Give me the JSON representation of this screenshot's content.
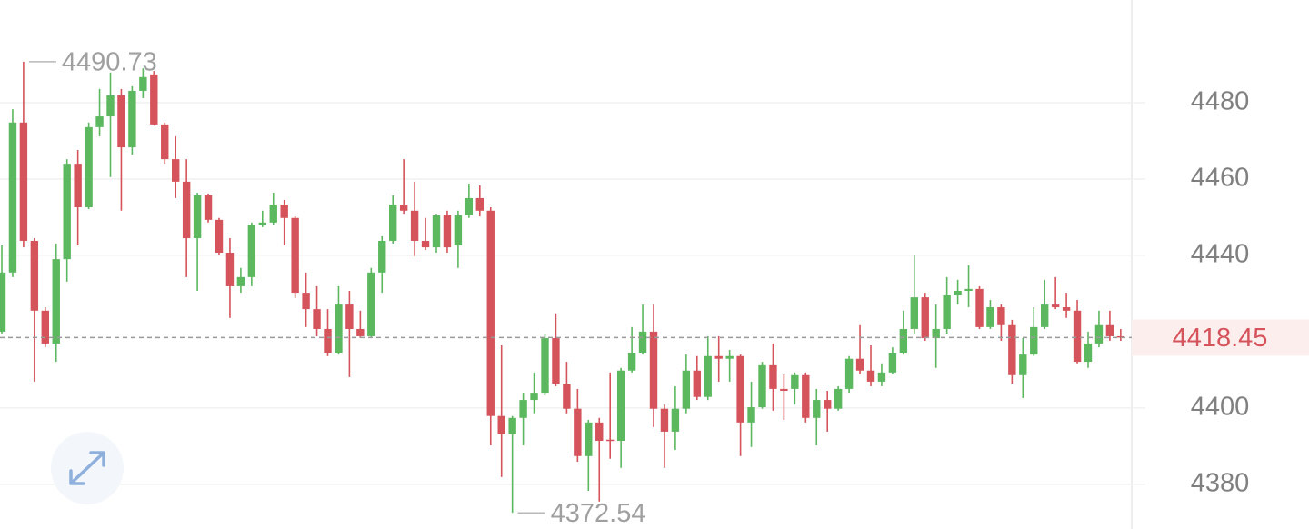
{
  "chart_data": {
    "type": "candlestick",
    "open": [
      4420.0,
      4435.5,
      4474.8,
      4443.8,
      4425.5,
      4416.9,
      4439.0,
      4464.0,
      4452.6,
      4473.6,
      4476.4,
      4481.9,
      4468.3,
      4483.1,
      4487.4,
      4474.3,
      4465.2,
      4459.3,
      4444.5,
      4455.7,
      4449.3,
      4440.7,
      4431.9,
      4434.3,
      4447.9,
      4448.6,
      4453.3,
      4449.8,
      4430.2,
      4425.9,
      4420.7,
      4414.5,
      4427.1,
      4420.7,
      4418.8,
      4435.5,
      4443.8,
      4453.3,
      4451.7,
      4443.8,
      4442.1,
      4450.5,
      4442.6,
      4450.5,
      4455.0,
      4451.7,
      4397.9,
      4393.1,
      4397.4,
      4402.1,
      4404.0,
      4418.3,
      4406.4,
      4399.8,
      4387.4,
      4396.2,
      4391.7,
      4391.4,
      4409.8,
      4414.5,
      4420.0,
      4399.8,
      4393.8,
      4399.8,
      4409.8,
      4402.9,
      4413.6,
      4412.9,
      4413.6,
      4396.2,
      4400.2,
      4411.2,
      4405.0,
      4405.0,
      4408.6,
      4397.4,
      4402.1,
      4399.8,
      4405.0,
      4412.9,
      4409.8,
      4406.9,
      4409.3,
      4414.5,
      4420.7,
      4429.0,
      4418.3,
      4420.7,
      4429.5,
      4430.7,
      4431.2,
      4421.2,
      4426.4,
      4421.7,
      4408.6,
      4414.0,
      4421.2,
      4427.1,
      4426.4,
      4425.5,
      4412.1,
      4416.9,
      4421.7,
      4418.8
    ],
    "high": [
      4442.6,
      4478.3,
      4490.73,
      4444.5,
      4426.4,
      4443.1,
      4465.2,
      4467.6,
      4474.8,
      4483.6,
      4487.9,
      4483.6,
      4484.3,
      4489.0,
      4488.3,
      4474.8,
      4471.2,
      4465.2,
      4456.4,
      4456.2,
      4449.8,
      4444.5,
      4436.7,
      4448.6,
      4451.7,
      4456.4,
      4454.5,
      4450.2,
      4435.5,
      4431.9,
      4425.9,
      4431.9,
      4430.7,
      4425.5,
      4436.7,
      4445.0,
      4455.7,
      4465.2,
      4459.3,
      4449.8,
      4450.9,
      4451.7,
      4451.7,
      4458.8,
      4458.3,
      4452.6,
      4416.4,
      4397.9,
      4404.0,
      4409.3,
      4419.3,
      4424.8,
      4412.1,
      4405.0,
      4396.9,
      4397.4,
      4409.3,
      4410.5,
      4421.2,
      4427.1,
      4427.1,
      4400.9,
      4405.7,
      4414.0,
      4413.6,
      4418.8,
      4418.8,
      4415.2,
      4414.0,
      4406.9,
      4412.1,
      4416.9,
      4408.8,
      4409.3,
      4409.3,
      4405.0,
      4404.5,
      4405.7,
      4413.6,
      4421.7,
      4416.4,
      4411.7,
      4415.9,
      4425.5,
      4440.2,
      4430.2,
      4427.1,
      4434.3,
      4433.6,
      4437.4,
      4431.9,
      4428.3,
      4427.1,
      4423.1,
      4418.3,
      4426.4,
      4433.6,
      4434.3,
      4430.2,
      4428.3,
      4420.0,
      4425.5,
      4425.5,
      4420.7
    ],
    "low": [
      4419.3,
      4434.3,
      4442.1,
      4406.9,
      4415.9,
      4412.1,
      4433.1,
      4442.6,
      4452.1,
      4471.2,
      4460.5,
      4451.7,
      4466.4,
      4481.2,
      4474.0,
      4464.0,
      4455.0,
      4434.3,
      4430.7,
      4448.6,
      4440.2,
      4423.6,
      4430.2,
      4431.9,
      4447.4,
      4447.9,
      4442.6,
      4428.8,
      4421.2,
      4418.8,
      4413.6,
      4414.0,
      4408.1,
      4418.3,
      4418.3,
      4430.2,
      4443.1,
      4450.9,
      4439.8,
      4441.4,
      4440.7,
      4440.7,
      4436.7,
      4449.8,
      4450.2,
      4390.2,
      4381.9,
      4372.54,
      4390.2,
      4398.6,
      4403.3,
      4405.7,
      4398.6,
      4385.9,
      4378.3,
      4375.5,
      4386.7,
      4384.3,
      4409.3,
      4414.0,
      4395.0,
      4384.3,
      4389.0,
      4398.6,
      4402.1,
      4402.1,
      4406.9,
      4406.9,
      4387.4,
      4389.8,
      4399.8,
      4399.3,
      4396.9,
      4400.9,
      4396.2,
      4390.2,
      4393.8,
      4399.3,
      4404.0,
      4408.8,
      4405.7,
      4405.7,
      4408.8,
      4414.0,
      4419.3,
      4417.6,
      4410.5,
      4419.3,
      4427.1,
      4426.4,
      4420.7,
      4420.7,
      4417.6,
      4406.4,
      4402.6,
      4413.6,
      4420.7,
      4425.9,
      4423.6,
      4411.7,
      4410.5,
      4415.9,
      4417.6,
      4417.6
    ],
    "close": [
      4435.5,
      4474.8,
      4443.8,
      4425.5,
      4416.9,
      4439.0,
      4464.0,
      4452.6,
      4473.6,
      4476.4,
      4481.9,
      4468.3,
      4483.1,
      4486.7,
      4474.3,
      4465.2,
      4459.3,
      4444.5,
      4455.7,
      4449.3,
      4440.7,
      4431.9,
      4434.3,
      4447.9,
      4448.6,
      4453.3,
      4449.8,
      4430.2,
      4425.9,
      4420.7,
      4414.5,
      4427.1,
      4420.7,
      4418.8,
      4435.5,
      4443.8,
      4453.3,
      4451.7,
      4443.8,
      4442.1,
      4450.5,
      4442.1,
      4450.5,
      4455.0,
      4451.7,
      4397.9,
      4393.1,
      4397.4,
      4402.1,
      4404.0,
      4418.3,
      4406.4,
      4399.8,
      4387.4,
      4396.2,
      4391.4,
      4391.4,
      4409.8,
      4414.5,
      4420.0,
      4399.8,
      4393.8,
      4399.8,
      4409.8,
      4402.9,
      4413.6,
      4412.9,
      4413.6,
      4396.2,
      4400.2,
      4411.2,
      4405.0,
      4404.5,
      4408.6,
      4397.4,
      4402.1,
      4399.8,
      4405.0,
      4412.9,
      4409.8,
      4406.9,
      4409.3,
      4414.5,
      4420.7,
      4429.0,
      4418.3,
      4420.7,
      4429.5,
      4430.7,
      4431.2,
      4421.2,
      4426.4,
      4421.7,
      4408.6,
      4414.0,
      4421.2,
      4427.1,
      4426.4,
      4425.5,
      4412.1,
      4416.9,
      4421.7,
      4418.8,
      4418.45
    ],
    "up_color": "#5cb85f",
    "down_color": "#d5535b",
    "ylim": [
      4368.3,
      4506.9
    ],
    "yticks": [
      4380,
      4400,
      4440,
      4460,
      4480
    ],
    "grid": true,
    "high_index": 2,
    "low_index": 47
  }
}
